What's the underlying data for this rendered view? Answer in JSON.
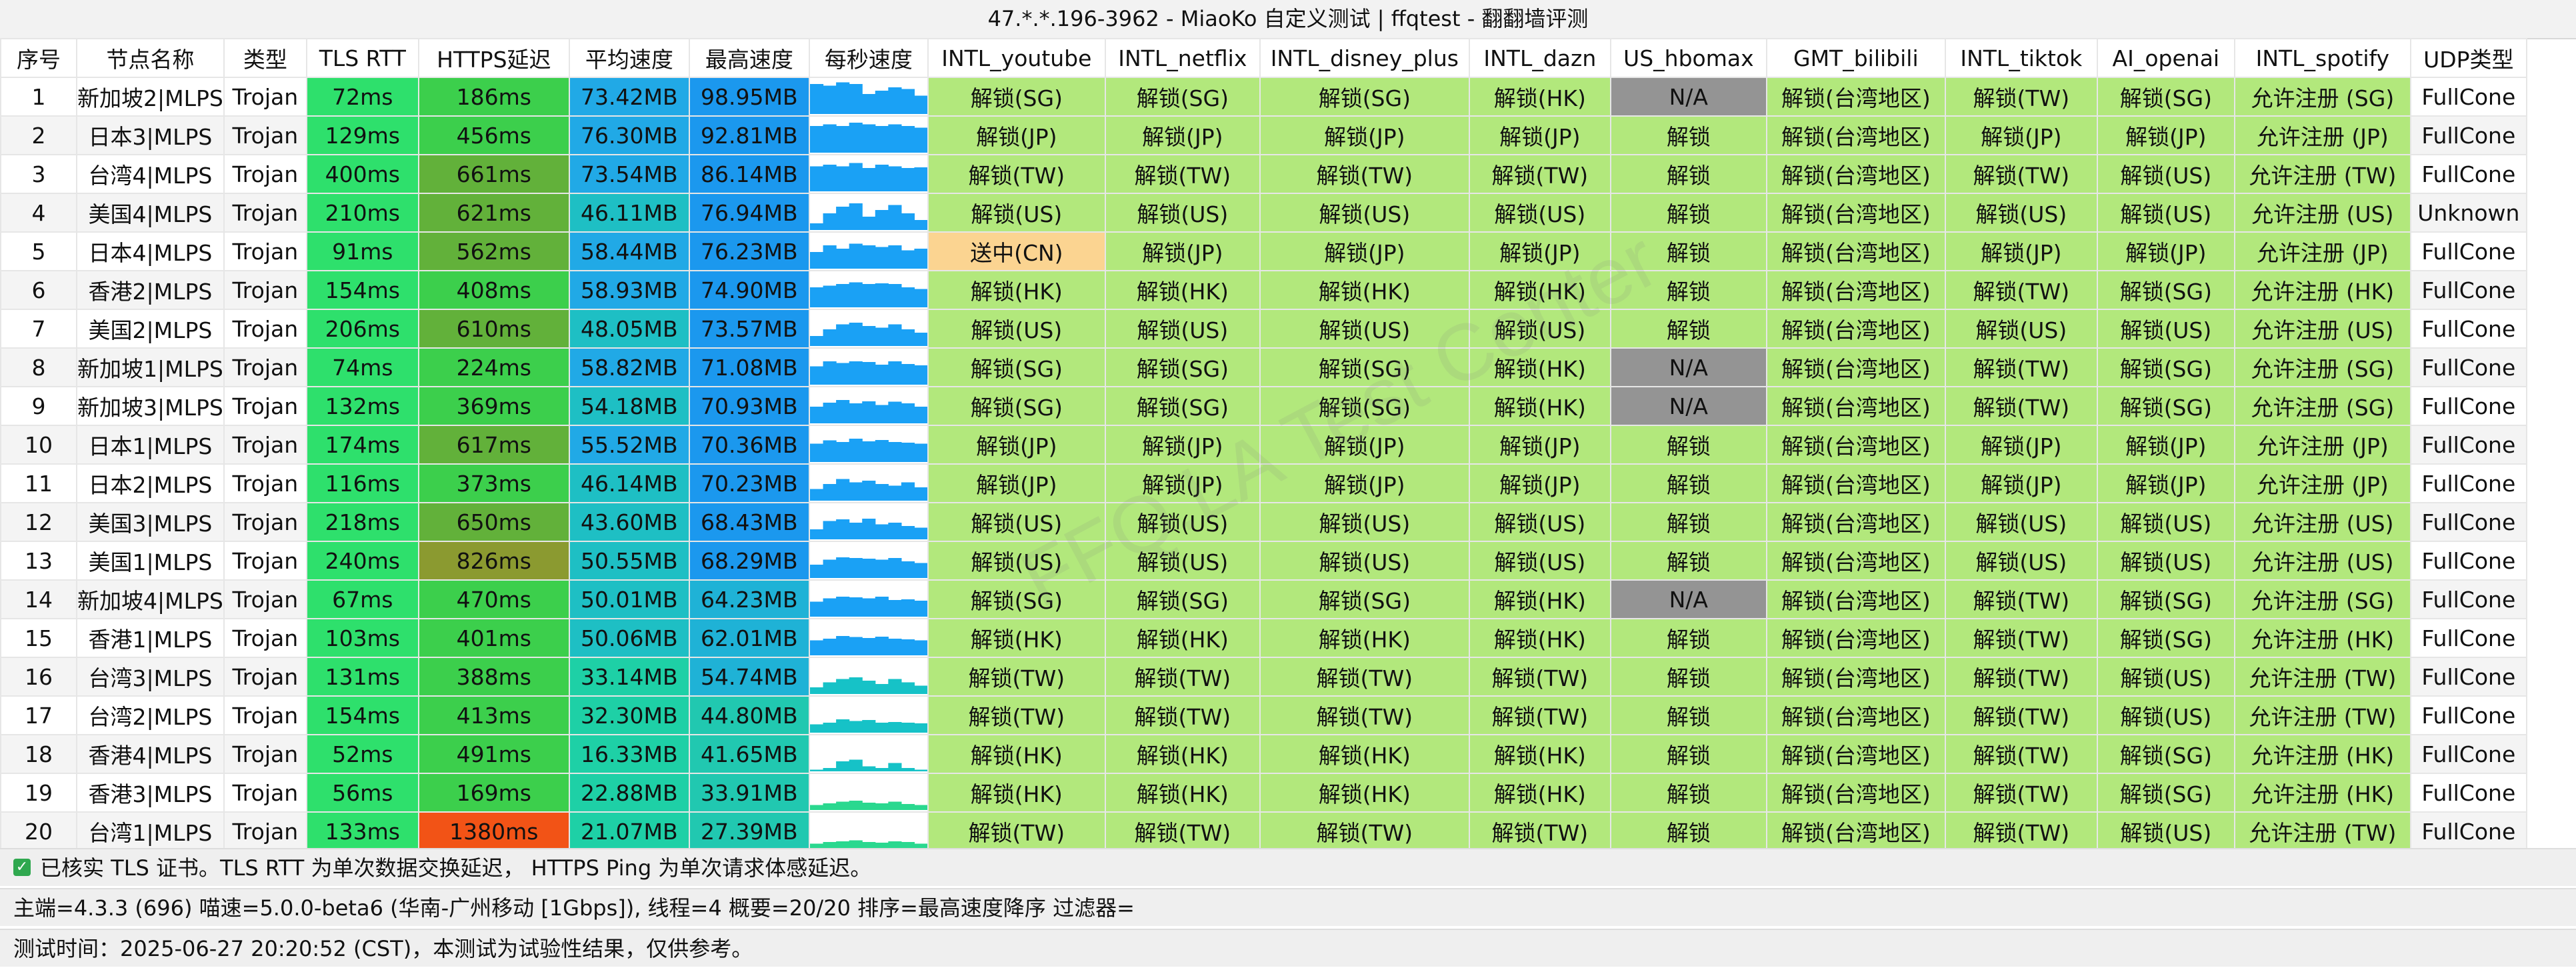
{
  "window": {
    "title": "47.*.*.196-3962 - MiaoKo 自定义测试 | ffqtest - 翻翻墙评测"
  },
  "watermark_text": "FFQ.LA Test Center",
  "columns": [
    "序号",
    "节点名称",
    "类型",
    "TLS RTT",
    "HTTPS延迟",
    "平均速度",
    "最高速度",
    "每秒速度",
    "INTL_youtube",
    "INTL_netflix",
    "INTL_disney_plus",
    "INTL_dazn",
    "US_hbomax",
    "GMT_bilibili",
    "INTL_tiktok",
    "AI_openai",
    "INTL_spotify",
    "UDP类型"
  ],
  "colors": {
    "plain_bg": "#ffffff",
    "unlock_green": "#b2e87c",
    "na_gray": "#949494",
    "cn_orange": "#fbd491",
    "rtt_green": "#2ee06c",
    "https_good": "#3ccf4c",
    "https_mid": "#62b13a",
    "https_slow": "#8b9a30",
    "https_bad": "#f25316",
    "avg_fast": "#21a9e6",
    "avg_mid": "#1ebfc4",
    "avg_slow": "#1ed0a6",
    "max_fast": "#1b98ee",
    "max_mid": "#1fb2d6",
    "max_slow": "#21c8b0",
    "spark_blue": "#1aa1f5",
    "spark_teal": "#16c2c7",
    "spark_green": "#2ad88f"
  },
  "rows": [
    {
      "no": "1",
      "name": "新加坡2|MLPS",
      "type": "Trojan",
      "rtt": "72ms",
      "https": "186ms",
      "avg": "73.42MB",
      "max": "98.95MB",
      "spark": [
        0.9,
        0.85,
        0.95,
        0.9,
        0.6,
        0.7,
        0.8,
        0.75,
        0.55
      ],
      "youtube": "解锁(SG)",
      "netflix": "解锁(SG)",
      "disney": "解锁(SG)",
      "dazn": "解锁(HK)",
      "hbomax": "N/A",
      "bilibili": "解锁(台湾地区)",
      "tiktok": "解锁(TW)",
      "openai": "解锁(SG)",
      "spotify": "允许注册 (SG)",
      "udp": "FullCone"
    },
    {
      "no": "2",
      "name": "日本3|MLPS",
      "type": "Trojan",
      "rtt": "129ms",
      "https": "456ms",
      "avg": "76.30MB",
      "max": "92.81MB",
      "spark": [
        0.8,
        0.85,
        0.8,
        0.9,
        0.85,
        0.8,
        0.85,
        0.8,
        0.75
      ],
      "youtube": "解锁(JP)",
      "netflix": "解锁(JP)",
      "disney": "解锁(JP)",
      "dazn": "解锁(JP)",
      "hbomax": "解锁",
      "bilibili": "解锁(台湾地区)",
      "tiktok": "解锁(JP)",
      "openai": "解锁(JP)",
      "spotify": "允许注册 (JP)",
      "udp": "FullCone"
    },
    {
      "no": "3",
      "name": "台湾4|MLPS",
      "type": "Trojan",
      "rtt": "400ms",
      "https": "661ms",
      "avg": "73.54MB",
      "max": "86.14MB",
      "spark": [
        0.75,
        0.8,
        0.75,
        0.85,
        0.7,
        0.8,
        0.75,
        0.7,
        0.72
      ],
      "youtube": "解锁(TW)",
      "netflix": "解锁(TW)",
      "disney": "解锁(TW)",
      "dazn": "解锁(TW)",
      "hbomax": "解锁",
      "bilibili": "解锁(台湾地区)",
      "tiktok": "解锁(TW)",
      "openai": "解锁(US)",
      "spotify": "允许注册 (TW)",
      "udp": "FullCone"
    },
    {
      "no": "4",
      "name": "美国4|MLPS",
      "type": "Trojan",
      "rtt": "210ms",
      "https": "621ms",
      "avg": "46.11MB",
      "max": "76.94MB",
      "spark": [
        0.2,
        0.5,
        0.7,
        0.8,
        0.4,
        0.6,
        0.75,
        0.5,
        0.3
      ],
      "youtube": "解锁(US)",
      "netflix": "解锁(US)",
      "disney": "解锁(US)",
      "dazn": "解锁(US)",
      "hbomax": "解锁",
      "bilibili": "解锁(台湾地区)",
      "tiktok": "解锁(US)",
      "openai": "解锁(US)",
      "spotify": "允许注册 (US)",
      "udp": "Unknown"
    },
    {
      "no": "5",
      "name": "日本4|MLPS",
      "type": "Trojan",
      "rtt": "91ms",
      "https": "562ms",
      "avg": "58.44MB",
      "max": "76.23MB",
      "spark": [
        0.5,
        0.7,
        0.6,
        0.75,
        0.7,
        0.65,
        0.7,
        0.55,
        0.6
      ],
      "youtube": "送中(CN)",
      "netflix": "解锁(JP)",
      "disney": "解锁(JP)",
      "dazn": "解锁(JP)",
      "hbomax": "解锁",
      "bilibili": "解锁(台湾地区)",
      "tiktok": "解锁(JP)",
      "openai": "解锁(JP)",
      "spotify": "允许注册 (JP)",
      "udp": "FullCone"
    },
    {
      "no": "6",
      "name": "香港2|MLPS",
      "type": "Trojan",
      "rtt": "154ms",
      "https": "408ms",
      "avg": "58.93MB",
      "max": "74.90MB",
      "spark": [
        0.6,
        0.65,
        0.7,
        0.75,
        0.7,
        0.72,
        0.7,
        0.6,
        0.55
      ],
      "youtube": "解锁(HK)",
      "netflix": "解锁(HK)",
      "disney": "解锁(HK)",
      "dazn": "解锁(HK)",
      "hbomax": "解锁",
      "bilibili": "解锁(台湾地区)",
      "tiktok": "解锁(TW)",
      "openai": "解锁(SG)",
      "spotify": "允许注册 (HK)",
      "udp": "FullCone"
    },
    {
      "no": "7",
      "name": "美国2|MLPS",
      "type": "Trojan",
      "rtt": "206ms",
      "https": "610ms",
      "avg": "48.05MB",
      "max": "73.57MB",
      "spark": [
        0.3,
        0.5,
        0.65,
        0.7,
        0.6,
        0.55,
        0.65,
        0.5,
        0.4
      ],
      "youtube": "解锁(US)",
      "netflix": "解锁(US)",
      "disney": "解锁(US)",
      "dazn": "解锁(US)",
      "hbomax": "解锁",
      "bilibili": "解锁(台湾地区)",
      "tiktok": "解锁(US)",
      "openai": "解锁(US)",
      "spotify": "允许注册 (US)",
      "udp": "FullCone"
    },
    {
      "no": "8",
      "name": "新加坡1|MLPS",
      "type": "Trojan",
      "rtt": "74ms",
      "https": "224ms",
      "avg": "58.82MB",
      "max": "71.08MB",
      "spark": [
        0.55,
        0.7,
        0.65,
        0.7,
        0.68,
        0.6,
        0.7,
        0.62,
        0.58
      ],
      "youtube": "解锁(SG)",
      "netflix": "解锁(SG)",
      "disney": "解锁(SG)",
      "dazn": "解锁(HK)",
      "hbomax": "N/A",
      "bilibili": "解锁(台湾地区)",
      "tiktok": "解锁(TW)",
      "openai": "解锁(SG)",
      "spotify": "允许注册 (SG)",
      "udp": "FullCone"
    },
    {
      "no": "9",
      "name": "新加坡3|MLPS",
      "type": "Trojan",
      "rtt": "132ms",
      "https": "369ms",
      "avg": "54.18MB",
      "max": "70.93MB",
      "spark": [
        0.5,
        0.62,
        0.7,
        0.6,
        0.66,
        0.55,
        0.65,
        0.6,
        0.5
      ],
      "youtube": "解锁(SG)",
      "netflix": "解锁(SG)",
      "disney": "解锁(SG)",
      "dazn": "解锁(HK)",
      "hbomax": "N/A",
      "bilibili": "解锁(台湾地区)",
      "tiktok": "解锁(TW)",
      "openai": "解锁(SG)",
      "spotify": "允许注册 (SG)",
      "udp": "FullCone"
    },
    {
      "no": "10",
      "name": "日本1|MLPS",
      "type": "Trojan",
      "rtt": "174ms",
      "https": "617ms",
      "avg": "55.52MB",
      "max": "70.36MB",
      "spark": [
        0.55,
        0.65,
        0.6,
        0.7,
        0.62,
        0.66,
        0.6,
        0.58,
        0.55
      ],
      "youtube": "解锁(JP)",
      "netflix": "解锁(JP)",
      "disney": "解锁(JP)",
      "dazn": "解锁(JP)",
      "hbomax": "解锁",
      "bilibili": "解锁(台湾地区)",
      "tiktok": "解锁(JP)",
      "openai": "解锁(JP)",
      "spotify": "允许注册 (JP)",
      "udp": "FullCone"
    },
    {
      "no": "11",
      "name": "日本2|MLPS",
      "type": "Trojan",
      "rtt": "116ms",
      "https": "373ms",
      "avg": "46.14MB",
      "max": "70.23MB",
      "spark": [
        0.35,
        0.5,
        0.65,
        0.55,
        0.6,
        0.5,
        0.45,
        0.55,
        0.4
      ],
      "youtube": "解锁(JP)",
      "netflix": "解锁(JP)",
      "disney": "解锁(JP)",
      "dazn": "解锁(JP)",
      "hbomax": "解锁",
      "bilibili": "解锁(台湾地区)",
      "tiktok": "解锁(JP)",
      "openai": "解锁(JP)",
      "spotify": "允许注册 (JP)",
      "udp": "FullCone"
    },
    {
      "no": "12",
      "name": "美国3|MLPS",
      "type": "Trojan",
      "rtt": "218ms",
      "https": "650ms",
      "avg": "43.60MB",
      "max": "68.43MB",
      "spark": [
        0.3,
        0.55,
        0.6,
        0.5,
        0.62,
        0.45,
        0.5,
        0.4,
        0.35
      ],
      "youtube": "解锁(US)",
      "netflix": "解锁(US)",
      "disney": "解锁(US)",
      "dazn": "解锁(US)",
      "hbomax": "解锁",
      "bilibili": "解锁(台湾地区)",
      "tiktok": "解锁(US)",
      "openai": "解锁(US)",
      "spotify": "允许注册 (US)",
      "udp": "FullCone"
    },
    {
      "no": "13",
      "name": "美国1|MLPS",
      "type": "Trojan",
      "rtt": "240ms",
      "https": "826ms",
      "avg": "50.55MB",
      "max": "68.29MB",
      "spark": [
        0.4,
        0.55,
        0.62,
        0.6,
        0.58,
        0.55,
        0.6,
        0.5,
        0.45
      ],
      "youtube": "解锁(US)",
      "netflix": "解锁(US)",
      "disney": "解锁(US)",
      "dazn": "解锁(US)",
      "hbomax": "解锁",
      "bilibili": "解锁(台湾地区)",
      "tiktok": "解锁(US)",
      "openai": "解锁(US)",
      "spotify": "允许注册 (US)",
      "udp": "FullCone"
    },
    {
      "no": "14",
      "name": "新加坡4|MLPS",
      "type": "Trojan",
      "rtt": "67ms",
      "https": "470ms",
      "avg": "50.01MB",
      "max": "64.23MB",
      "spark": [
        0.45,
        0.55,
        0.6,
        0.58,
        0.55,
        0.6,
        0.5,
        0.52,
        0.48
      ],
      "youtube": "解锁(SG)",
      "netflix": "解锁(SG)",
      "disney": "解锁(SG)",
      "dazn": "解锁(HK)",
      "hbomax": "N/A",
      "bilibili": "解锁(台湾地区)",
      "tiktok": "解锁(TW)",
      "openai": "解锁(SG)",
      "spotify": "允许注册 (SG)",
      "udp": "FullCone"
    },
    {
      "no": "15",
      "name": "香港1|MLPS",
      "type": "Trojan",
      "rtt": "103ms",
      "https": "401ms",
      "avg": "50.06MB",
      "max": "62.01MB",
      "spark": [
        0.45,
        0.5,
        0.58,
        0.55,
        0.52,
        0.56,
        0.5,
        0.48,
        0.45
      ],
      "youtube": "解锁(HK)",
      "netflix": "解锁(HK)",
      "disney": "解锁(HK)",
      "dazn": "解锁(HK)",
      "hbomax": "解锁",
      "bilibili": "解锁(台湾地区)",
      "tiktok": "解锁(TW)",
      "openai": "解锁(SG)",
      "spotify": "允许注册 (HK)",
      "udp": "FullCone"
    },
    {
      "no": "16",
      "name": "台湾3|MLPS",
      "type": "Trojan",
      "rtt": "131ms",
      "https": "388ms",
      "avg": "33.14MB",
      "max": "54.74MB",
      "spark": [
        0.2,
        0.35,
        0.45,
        0.5,
        0.4,
        0.3,
        0.45,
        0.35,
        0.25
      ],
      "youtube": "解锁(TW)",
      "netflix": "解锁(TW)",
      "disney": "解锁(TW)",
      "dazn": "解锁(TW)",
      "hbomax": "解锁",
      "bilibili": "解锁(台湾地区)",
      "tiktok": "解锁(TW)",
      "openai": "解锁(US)",
      "spotify": "允许注册 (TW)",
      "udp": "FullCone"
    },
    {
      "no": "17",
      "name": "台湾2|MLPS",
      "type": "Trojan",
      "rtt": "154ms",
      "https": "413ms",
      "avg": "32.30MB",
      "max": "44.80MB",
      "spark": [
        0.25,
        0.3,
        0.4,
        0.35,
        0.38,
        0.3,
        0.32,
        0.3,
        0.28
      ],
      "youtube": "解锁(TW)",
      "netflix": "解锁(TW)",
      "disney": "解锁(TW)",
      "dazn": "解锁(TW)",
      "hbomax": "解锁",
      "bilibili": "解锁(台湾地区)",
      "tiktok": "解锁(TW)",
      "openai": "解锁(US)",
      "spotify": "允许注册 (TW)",
      "udp": "FullCone"
    },
    {
      "no": "18",
      "name": "香港4|MLPS",
      "type": "Trojan",
      "rtt": "52ms",
      "https": "491ms",
      "avg": "16.33MB",
      "max": "41.65MB",
      "spark": [
        0.05,
        0.1,
        0.3,
        0.35,
        0.15,
        0.1,
        0.25,
        0.1,
        0.05
      ],
      "youtube": "解锁(HK)",
      "netflix": "解锁(HK)",
      "disney": "解锁(HK)",
      "dazn": "解锁(HK)",
      "hbomax": "解锁",
      "bilibili": "解锁(台湾地区)",
      "tiktok": "解锁(TW)",
      "openai": "解锁(SG)",
      "spotify": "允许注册 (HK)",
      "udp": "FullCone"
    },
    {
      "no": "19",
      "name": "香港3|MLPS",
      "type": "Trojan",
      "rtt": "56ms",
      "https": "169ms",
      "avg": "22.88MB",
      "max": "33.91MB",
      "spark": [
        0.15,
        0.2,
        0.25,
        0.28,
        0.22,
        0.2,
        0.25,
        0.18,
        0.15
      ],
      "youtube": "解锁(HK)",
      "netflix": "解锁(HK)",
      "disney": "解锁(HK)",
      "dazn": "解锁(HK)",
      "hbomax": "解锁",
      "bilibili": "解锁(台湾地区)",
      "tiktok": "解锁(TW)",
      "openai": "解锁(SG)",
      "spotify": "允许注册 (HK)",
      "udp": "FullCone"
    },
    {
      "no": "20",
      "name": "台湾1|MLPS",
      "type": "Trojan",
      "rtt": "133ms",
      "https": "1380ms",
      "avg": "21.07MB",
      "max": "27.39MB",
      "spark": [
        0.15,
        0.2,
        0.22,
        0.25,
        0.2,
        0.18,
        0.22,
        0.2,
        0.15
      ],
      "youtube": "解锁(TW)",
      "netflix": "解锁(TW)",
      "disney": "解锁(TW)",
      "dazn": "解锁(TW)",
      "hbomax": "解锁",
      "bilibili": "解锁(台湾地区)",
      "tiktok": "解锁(TW)",
      "openai": "解锁(US)",
      "spotify": "允许注册 (TW)",
      "udp": "FullCone"
    }
  ],
  "footer": {
    "line1": "已核实 TLS 证书。TLS RTT 为单次数据交换延迟， HTTPS Ping 为单次请求体感延迟。",
    "line2": "主端=4.3.3 (696) 喵速=5.0.0-beta6 (华南-广州移动 [1Gbps]), 线程=4 概要=20/20 排序=最高速度降序 过滤器=",
    "line3": "测试时间：2025-06-27 20:20:52 (CST)，本测试为试验性结果，仅供参考。"
  }
}
